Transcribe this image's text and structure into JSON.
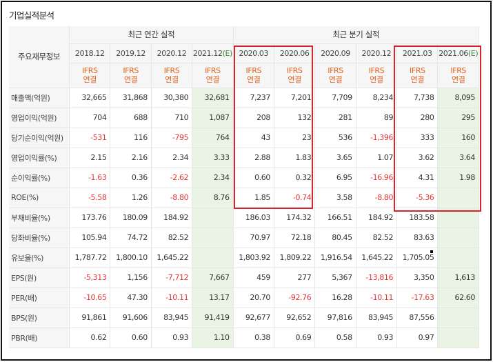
{
  "title": "기업실적분석",
  "header": {
    "row_header": "주요재무정보",
    "annual_group": "최근 연간 실적",
    "quarter_group": "최근 분기 실적",
    "annual_periods": [
      "2018.12",
      "2019.12",
      "2020.12",
      "2021.12"
    ],
    "annual_estimate_tag": "(E)",
    "quarter_periods": [
      "2020.03",
      "2020.06",
      "2020.09",
      "2020.12",
      "2021.03",
      "2021.06"
    ],
    "quarter_estimate_tag": "(E)",
    "basis_line1": "IFRS",
    "basis_line2": "연결"
  },
  "rows": [
    {
      "label": "매출액(억원)",
      "values": [
        "32,665",
        "31,868",
        "30,380",
        "32,681",
        "7,237",
        "7,201",
        "7,709",
        "8,234",
        "7,738",
        "8,095"
      ]
    },
    {
      "label": "영업이익(억원)",
      "values": [
        "704",
        "688",
        "710",
        "1,087",
        "208",
        "132",
        "281",
        "89",
        "280",
        "295"
      ]
    },
    {
      "label": "당기순이익(억원)",
      "values": [
        "-531",
        "116",
        "-795",
        "764",
        "43",
        "23",
        "536",
        "-1,396",
        "333",
        "160"
      ]
    },
    {
      "label": "영업이익률(%)",
      "values": [
        "2.15",
        "2.16",
        "2.34",
        "3.33",
        "2.88",
        "1.83",
        "3.65",
        "1.07",
        "3.62",
        "3.64"
      ]
    },
    {
      "label": "순이익률(%)",
      "values": [
        "-1.63",
        "0.36",
        "-2.62",
        "2.34",
        "0.60",
        "0.32",
        "6.95",
        "-16.96",
        "4.31",
        "1.98"
      ]
    },
    {
      "label": "ROE(%)",
      "values": [
        "-5.58",
        "1.26",
        "-8.80",
        "8.76",
        "1.85",
        "-0.74",
        "3.58",
        "-8.80",
        "-5.36",
        ""
      ]
    },
    {
      "label": "부채비율(%)",
      "values": [
        "173.76",
        "180.09",
        "184.92",
        "",
        "186.03",
        "174.32",
        "166.51",
        "184.92",
        "183.58",
        ""
      ]
    },
    {
      "label": "당좌비율(%)",
      "values": [
        "105.94",
        "74.72",
        "82.52",
        "",
        "70.97",
        "72.18",
        "80.45",
        "82.52",
        "83.63",
        ""
      ]
    },
    {
      "label": "유보율(%)",
      "values": [
        "1,787.72",
        "1,800.10",
        "1,645.22",
        "",
        "1,803.92",
        "1,809.22",
        "1,916.54",
        "1,645.22",
        "1,705.05",
        ""
      ]
    },
    {
      "label": "EPS(원)",
      "values": [
        "-5,313",
        "1,156",
        "-7,712",
        "7,667",
        "459",
        "277",
        "5,367",
        "-13,816",
        "3,350",
        "1,613"
      ]
    },
    {
      "label": "PER(배)",
      "values": [
        "-10.65",
        "47.30",
        "-10.11",
        "13.17",
        "20.70",
        "-92.76",
        "16.28",
        "-10.11",
        "-17.63",
        "62.60"
      ]
    },
    {
      "label": "BPS(원)",
      "values": [
        "91,861",
        "91,606",
        "83,945",
        "91,419",
        "92,677",
        "92,652",
        "97,816",
        "83,945",
        "87,556",
        ""
      ]
    },
    {
      "label": "PBR(배)",
      "values": [
        "0.62",
        "0.60",
        "0.93",
        "1.10",
        "0.38",
        "0.69",
        "0.58",
        "0.93",
        "0.97",
        ""
      ]
    }
  ],
  "colors": {
    "negative": "#e23636",
    "basis": "#e0621d",
    "estimate_bg": "#eaf4e5",
    "highlight_box": "#d8232a"
  }
}
